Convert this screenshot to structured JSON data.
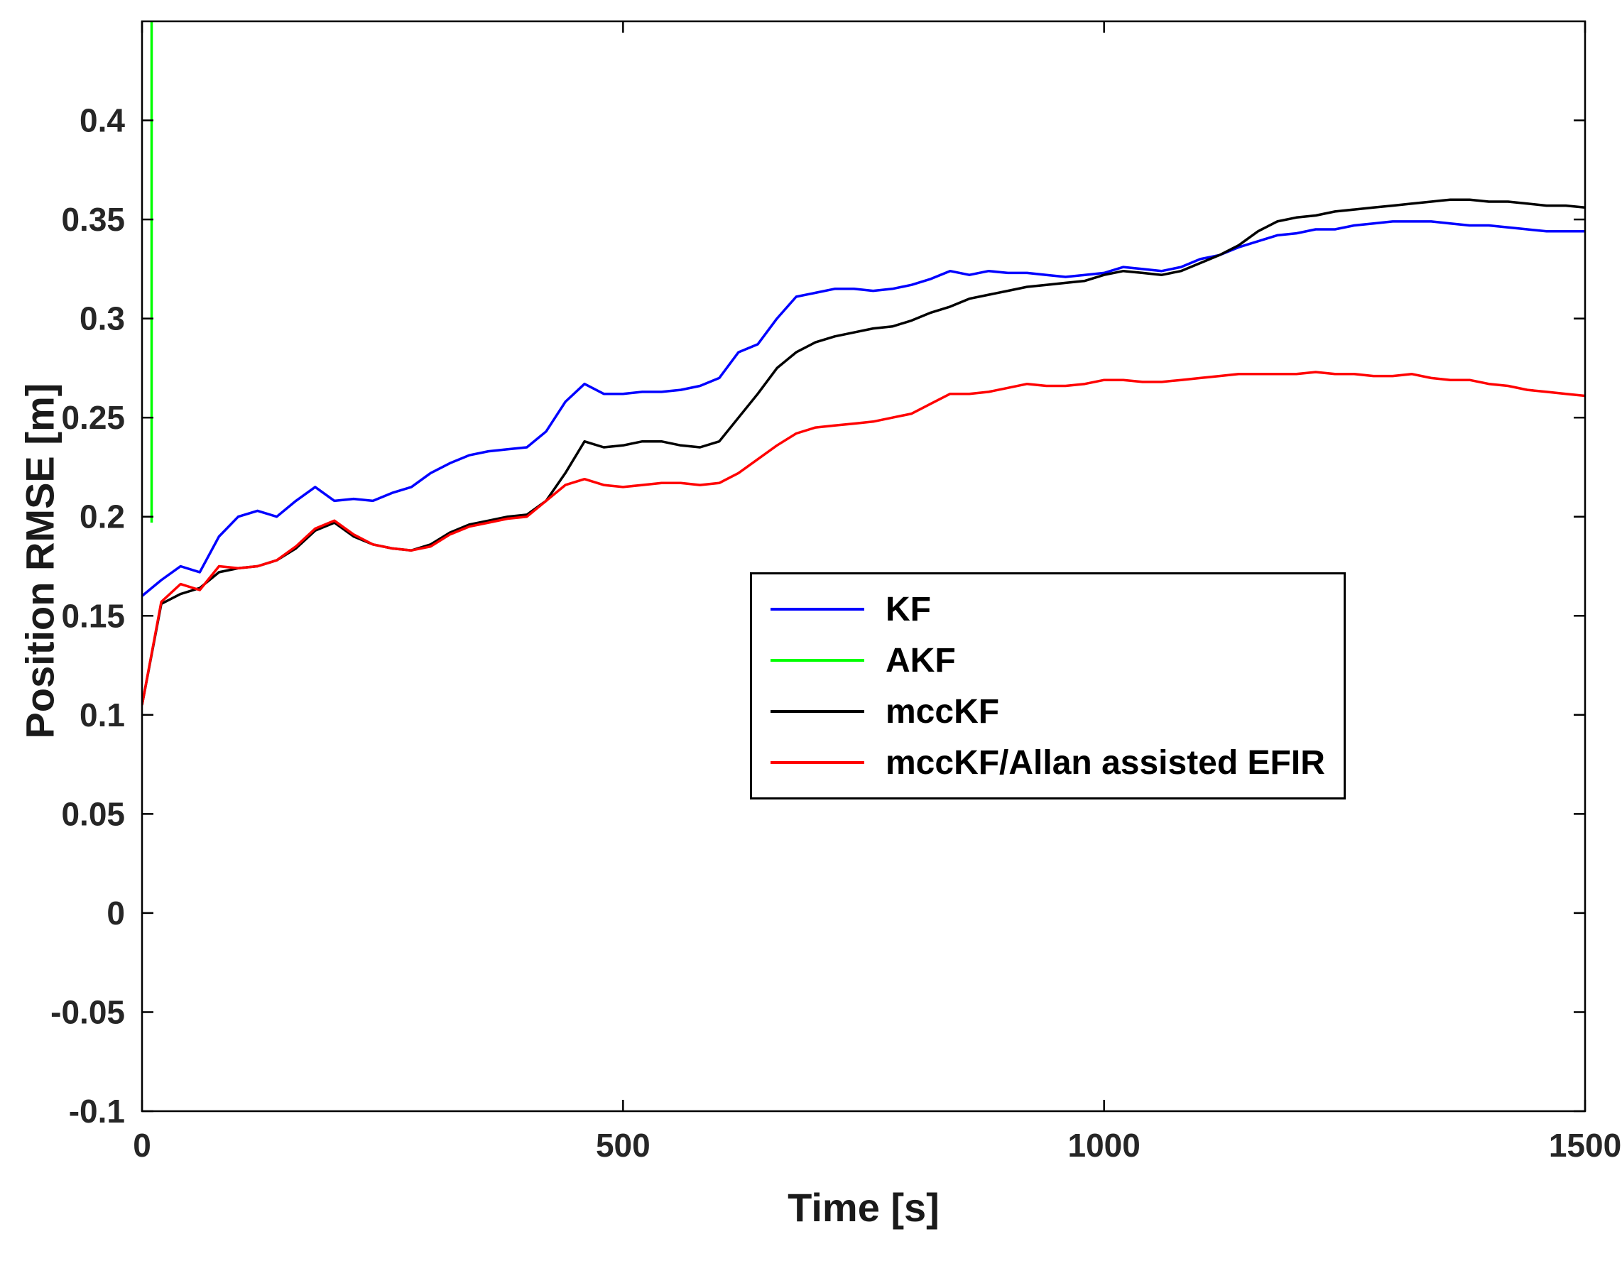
{
  "chart_data": {
    "type": "line",
    "title": "",
    "xlabel": "Time [s]",
    "ylabel": "Position RMSE [m]",
    "xlim": [
      0,
      1500
    ],
    "ylim": [
      -0.1,
      0.45
    ],
    "xticks": [
      0,
      500,
      1000,
      1500
    ],
    "yticks": [
      -0.1,
      -0.05,
      0,
      0.05,
      0.1,
      0.15,
      0.2,
      0.25,
      0.3,
      0.35,
      0.4
    ],
    "grid": false,
    "axis_color": "#000000",
    "tick_label_color": "#262626",
    "legend_position": "inside-center-right",
    "series": [
      {
        "name": "KF",
        "color": "#0000ff",
        "x": [
          0,
          20,
          40,
          60,
          80,
          100,
          120,
          140,
          160,
          180,
          200,
          220,
          240,
          260,
          280,
          300,
          320,
          340,
          360,
          380,
          400,
          420,
          440,
          460,
          480,
          500,
          520,
          540,
          560,
          580,
          600,
          620,
          640,
          660,
          680,
          700,
          720,
          740,
          760,
          780,
          800,
          820,
          840,
          860,
          880,
          900,
          920,
          940,
          960,
          980,
          1000,
          1020,
          1040,
          1060,
          1080,
          1100,
          1120,
          1140,
          1160,
          1180,
          1200,
          1220,
          1240,
          1260,
          1280,
          1300,
          1320,
          1340,
          1360,
          1380,
          1400,
          1420,
          1440,
          1460,
          1480,
          1500
        ],
        "y": [
          0.16,
          0.168,
          0.175,
          0.172,
          0.19,
          0.2,
          0.203,
          0.2,
          0.208,
          0.215,
          0.208,
          0.209,
          0.208,
          0.212,
          0.215,
          0.222,
          0.227,
          0.231,
          0.233,
          0.234,
          0.235,
          0.243,
          0.258,
          0.267,
          0.262,
          0.262,
          0.263,
          0.263,
          0.264,
          0.266,
          0.27,
          0.283,
          0.287,
          0.3,
          0.311,
          0.313,
          0.315,
          0.315,
          0.314,
          0.315,
          0.317,
          0.32,
          0.324,
          0.322,
          0.324,
          0.323,
          0.323,
          0.322,
          0.321,
          0.322,
          0.323,
          0.326,
          0.325,
          0.324,
          0.326,
          0.33,
          0.332,
          0.336,
          0.339,
          0.342,
          0.343,
          0.345,
          0.345,
          0.347,
          0.348,
          0.349,
          0.349,
          0.349,
          0.348,
          0.347,
          0.347,
          0.346,
          0.345,
          0.344,
          0.344,
          0.344
        ]
      },
      {
        "name": "AKF",
        "color": "#00ff00",
        "x": [
          10,
          10
        ],
        "y": [
          0.197,
          0.46
        ]
      },
      {
        "name": "mccKF",
        "color": "#000000",
        "x": [
          0,
          20,
          40,
          60,
          80,
          100,
          120,
          140,
          160,
          180,
          200,
          220,
          240,
          260,
          280,
          300,
          320,
          340,
          360,
          380,
          400,
          420,
          440,
          460,
          480,
          500,
          520,
          540,
          560,
          580,
          600,
          620,
          640,
          660,
          680,
          700,
          720,
          740,
          760,
          780,
          800,
          820,
          840,
          860,
          880,
          900,
          920,
          940,
          960,
          980,
          1000,
          1020,
          1040,
          1060,
          1080,
          1100,
          1120,
          1140,
          1160,
          1180,
          1200,
          1220,
          1240,
          1260,
          1280,
          1300,
          1320,
          1340,
          1360,
          1380,
          1400,
          1420,
          1440,
          1460,
          1480,
          1500
        ],
        "y": [
          0.105,
          0.156,
          0.161,
          0.164,
          0.172,
          0.174,
          0.175,
          0.178,
          0.184,
          0.193,
          0.197,
          0.19,
          0.186,
          0.184,
          0.183,
          0.186,
          0.192,
          0.196,
          0.198,
          0.2,
          0.201,
          0.208,
          0.222,
          0.238,
          0.235,
          0.236,
          0.238,
          0.238,
          0.236,
          0.235,
          0.238,
          0.25,
          0.262,
          0.275,
          0.283,
          0.288,
          0.291,
          0.293,
          0.295,
          0.296,
          0.299,
          0.303,
          0.306,
          0.31,
          0.312,
          0.314,
          0.316,
          0.317,
          0.318,
          0.319,
          0.322,
          0.324,
          0.323,
          0.322,
          0.324,
          0.328,
          0.332,
          0.337,
          0.344,
          0.349,
          0.351,
          0.352,
          0.354,
          0.355,
          0.356,
          0.357,
          0.358,
          0.359,
          0.36,
          0.36,
          0.359,
          0.359,
          0.358,
          0.357,
          0.357,
          0.356
        ]
      },
      {
        "name": "mccKF/Allan assisted EFIR",
        "color": "#ff0000",
        "x": [
          0,
          20,
          40,
          60,
          80,
          100,
          120,
          140,
          160,
          180,
          200,
          220,
          240,
          260,
          280,
          300,
          320,
          340,
          360,
          380,
          400,
          420,
          440,
          460,
          480,
          500,
          520,
          540,
          560,
          580,
          600,
          620,
          640,
          660,
          680,
          700,
          720,
          740,
          760,
          780,
          800,
          820,
          840,
          860,
          880,
          900,
          920,
          940,
          960,
          980,
          1000,
          1020,
          1040,
          1060,
          1080,
          1100,
          1120,
          1140,
          1160,
          1180,
          1200,
          1220,
          1240,
          1260,
          1280,
          1300,
          1320,
          1340,
          1360,
          1380,
          1400,
          1420,
          1440,
          1460,
          1480,
          1500
        ],
        "y": [
          0.105,
          0.157,
          0.166,
          0.163,
          0.175,
          0.174,
          0.175,
          0.178,
          0.185,
          0.194,
          0.198,
          0.191,
          0.186,
          0.184,
          0.183,
          0.185,
          0.191,
          0.195,
          0.197,
          0.199,
          0.2,
          0.208,
          0.216,
          0.219,
          0.216,
          0.215,
          0.216,
          0.217,
          0.217,
          0.216,
          0.217,
          0.222,
          0.229,
          0.236,
          0.242,
          0.245,
          0.246,
          0.247,
          0.248,
          0.25,
          0.252,
          0.257,
          0.262,
          0.262,
          0.263,
          0.265,
          0.267,
          0.266,
          0.266,
          0.267,
          0.269,
          0.269,
          0.268,
          0.268,
          0.269,
          0.27,
          0.271,
          0.272,
          0.272,
          0.272,
          0.272,
          0.273,
          0.272,
          0.272,
          0.271,
          0.271,
          0.272,
          0.27,
          0.269,
          0.269,
          0.267,
          0.266,
          0.264,
          0.263,
          0.262,
          0.261
        ]
      }
    ]
  }
}
